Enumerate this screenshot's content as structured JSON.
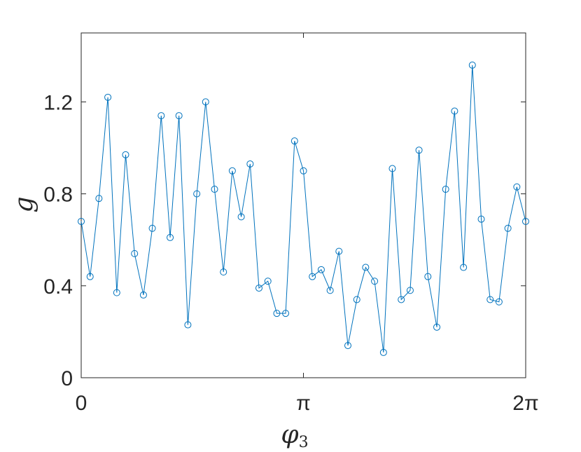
{
  "chart_data": {
    "type": "line",
    "title": "",
    "xlabel": "φ",
    "xlabel_subscript": "3",
    "ylabel": "g",
    "xlim": [
      0,
      6.2832
    ],
    "ylim": [
      0,
      1.5
    ],
    "x_ticks": [
      {
        "value": 0,
        "label": "0"
      },
      {
        "value": 3.1416,
        "label": "π"
      },
      {
        "value": 6.2832,
        "label": "2π"
      }
    ],
    "y_ticks": [
      {
        "value": 0,
        "label": "0"
      },
      {
        "value": 0.4,
        "label": "0.4"
      },
      {
        "value": 0.8,
        "label": "0.8"
      },
      {
        "value": 1.2,
        "label": "1.2"
      }
    ],
    "grid": false,
    "marker": "open-circle",
    "series": [
      {
        "color": "#0072BD",
        "x": [
          0.0,
          0.126,
          0.251,
          0.377,
          0.503,
          0.628,
          0.754,
          0.88,
          1.005,
          1.131,
          1.257,
          1.382,
          1.508,
          1.634,
          1.759,
          1.885,
          2.011,
          2.136,
          2.262,
          2.388,
          2.513,
          2.639,
          2.765,
          2.89,
          3.016,
          3.142,
          3.267,
          3.393,
          3.519,
          3.644,
          3.77,
          3.896,
          4.021,
          4.147,
          4.273,
          4.398,
          4.524,
          4.65,
          4.775,
          4.901,
          5.027,
          5.152,
          5.278,
          5.404,
          5.529,
          5.655,
          5.781,
          5.906,
          6.032,
          6.158,
          6.283
        ],
        "y": [
          0.68,
          0.44,
          0.78,
          1.22,
          0.37,
          0.97,
          0.54,
          0.36,
          0.65,
          1.14,
          0.61,
          1.14,
          0.23,
          0.8,
          1.2,
          0.82,
          0.46,
          0.9,
          0.7,
          0.93,
          0.39,
          0.42,
          0.28,
          0.28,
          1.03,
          0.9,
          0.44,
          0.47,
          0.38,
          0.55,
          0.14,
          0.34,
          0.48,
          0.42,
          0.11,
          0.91,
          0.34,
          0.38,
          0.99,
          0.44,
          0.22,
          0.82,
          1.16,
          0.48,
          1.36,
          0.69,
          0.34,
          0.33,
          0.65,
          0.83,
          0.68
        ]
      }
    ]
  }
}
